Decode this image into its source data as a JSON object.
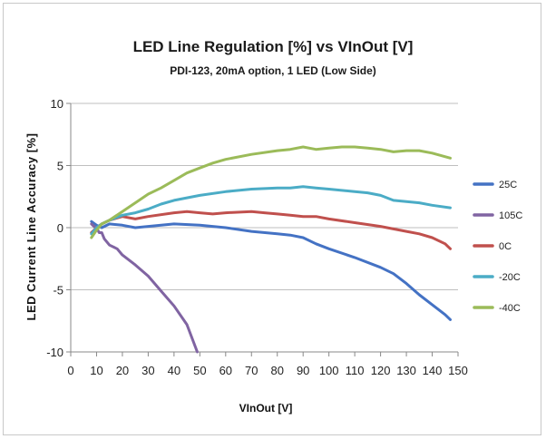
{
  "chart_data": {
    "type": "line",
    "title": "LED Line Regulation [%] vs VInOut [V]",
    "subtitle": "PDI-123, 20mA option, 1 LED (Low Side)",
    "xlabel": "VInOut [V]",
    "ylabel": "LED Current Line Accuracy [%]",
    "xlim": [
      0,
      150
    ],
    "ylim": [
      -10,
      10
    ],
    "x_ticks": [
      0,
      10,
      20,
      30,
      40,
      50,
      60,
      70,
      80,
      90,
      100,
      110,
      120,
      130,
      140,
      150
    ],
    "y_ticks": [
      10,
      5,
      0,
      -5,
      -10
    ],
    "grid": "horizontal",
    "legend_position": "right",
    "series": [
      {
        "name": "25C",
        "color": "#4472C4",
        "points": [
          [
            8,
            0.5
          ],
          [
            10,
            0.2
          ],
          [
            12,
            0.0
          ],
          [
            15,
            0.3
          ],
          [
            20,
            0.2
          ],
          [
            25,
            0.0
          ],
          [
            30,
            0.1
          ],
          [
            40,
            0.3
          ],
          [
            50,
            0.2
          ],
          [
            60,
            0.0
          ],
          [
            70,
            -0.3
          ],
          [
            80,
            -0.5
          ],
          [
            85,
            -0.6
          ],
          [
            90,
            -0.8
          ],
          [
            95,
            -1.3
          ],
          [
            100,
            -1.7
          ],
          [
            110,
            -2.4
          ],
          [
            120,
            -3.2
          ],
          [
            125,
            -3.7
          ],
          [
            130,
            -4.5
          ],
          [
            135,
            -5.4
          ],
          [
            140,
            -6.2
          ],
          [
            145,
            -7.0
          ],
          [
            147,
            -7.4
          ]
        ]
      },
      {
        "name": "105C",
        "color": "#8064A2",
        "points": [
          [
            8,
            0.3
          ],
          [
            9,
            0.1
          ],
          [
            10,
            0.0
          ],
          [
            11,
            -0.4
          ],
          [
            12,
            -0.4
          ],
          [
            13,
            -0.9
          ],
          [
            15,
            -1.4
          ],
          [
            18,
            -1.7
          ],
          [
            20,
            -2.2
          ],
          [
            25,
            -3.0
          ],
          [
            30,
            -3.9
          ],
          [
            35,
            -5.1
          ],
          [
            40,
            -6.3
          ],
          [
            45,
            -7.8
          ],
          [
            49,
            -10.0
          ]
        ]
      },
      {
        "name": "0C",
        "color": "#C0504D",
        "points": [
          [
            8,
            -0.4
          ],
          [
            10,
            0.0
          ],
          [
            12,
            0.3
          ],
          [
            15,
            0.6
          ],
          [
            20,
            0.9
          ],
          [
            25,
            0.7
          ],
          [
            30,
            0.9
          ],
          [
            40,
            1.2
          ],
          [
            45,
            1.3
          ],
          [
            50,
            1.2
          ],
          [
            55,
            1.1
          ],
          [
            60,
            1.2
          ],
          [
            70,
            1.3
          ],
          [
            75,
            1.2
          ],
          [
            80,
            1.1
          ],
          [
            85,
            1.0
          ],
          [
            90,
            0.9
          ],
          [
            95,
            0.9
          ],
          [
            100,
            0.7
          ],
          [
            110,
            0.4
          ],
          [
            120,
            0.1
          ],
          [
            125,
            -0.1
          ],
          [
            130,
            -0.3
          ],
          [
            135,
            -0.5
          ],
          [
            140,
            -0.8
          ],
          [
            145,
            -1.3
          ],
          [
            147,
            -1.7
          ]
        ]
      },
      {
        "name": "-20C",
        "color": "#4BACC6",
        "points": [
          [
            8,
            -0.5
          ],
          [
            10,
            0.0
          ],
          [
            12,
            0.3
          ],
          [
            15,
            0.6
          ],
          [
            20,
            1.0
          ],
          [
            25,
            1.2
          ],
          [
            30,
            1.5
          ],
          [
            35,
            1.9
          ],
          [
            40,
            2.2
          ],
          [
            50,
            2.6
          ],
          [
            60,
            2.9
          ],
          [
            70,
            3.1
          ],
          [
            80,
            3.2
          ],
          [
            85,
            3.2
          ],
          [
            90,
            3.3
          ],
          [
            95,
            3.2
          ],
          [
            100,
            3.1
          ],
          [
            110,
            2.9
          ],
          [
            115,
            2.8
          ],
          [
            120,
            2.6
          ],
          [
            125,
            2.2
          ],
          [
            130,
            2.1
          ],
          [
            135,
            2.0
          ],
          [
            140,
            1.8
          ],
          [
            147,
            1.6
          ]
        ]
      },
      {
        "name": "-40C",
        "color": "#9BBB59",
        "points": [
          [
            8,
            -0.8
          ],
          [
            10,
            -0.2
          ],
          [
            12,
            0.3
          ],
          [
            15,
            0.6
          ],
          [
            20,
            1.3
          ],
          [
            25,
            2.0
          ],
          [
            30,
            2.7
          ],
          [
            35,
            3.2
          ],
          [
            40,
            3.8
          ],
          [
            45,
            4.4
          ],
          [
            50,
            4.8
          ],
          [
            55,
            5.2
          ],
          [
            60,
            5.5
          ],
          [
            70,
            5.9
          ],
          [
            80,
            6.2
          ],
          [
            85,
            6.3
          ],
          [
            90,
            6.5
          ],
          [
            95,
            6.3
          ],
          [
            100,
            6.4
          ],
          [
            105,
            6.5
          ],
          [
            110,
            6.5
          ],
          [
            115,
            6.4
          ],
          [
            120,
            6.3
          ],
          [
            125,
            6.1
          ],
          [
            130,
            6.2
          ],
          [
            135,
            6.2
          ],
          [
            140,
            6.0
          ],
          [
            147,
            5.6
          ]
        ]
      }
    ]
  }
}
